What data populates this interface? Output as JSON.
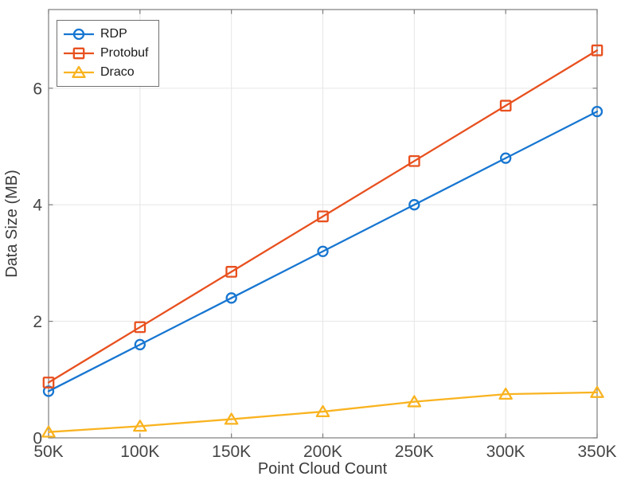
{
  "figure": {
    "background": "#ffffff"
  },
  "chart_data": {
    "type": "line",
    "title": "",
    "xlabel": "Point Cloud Count",
    "ylabel": "Data Size (MB)",
    "x": [
      50,
      100,
      150,
      200,
      250,
      300,
      350
    ],
    "x_tick_labels": [
      "50K",
      "100K",
      "150K",
      "200K",
      "250K",
      "300K",
      "350K"
    ],
    "xlim": [
      50,
      350
    ],
    "y_ticks": [
      0,
      2,
      4,
      6
    ],
    "y_tick_labels": [
      "0",
      "2",
      "4",
      "6"
    ],
    "ylim": [
      0,
      7.35
    ],
    "grid": true,
    "legend_position": "top-left",
    "series": [
      {
        "name": "RDP",
        "color": "#1776d1",
        "marker": "circle",
        "values": [
          0.8,
          1.6,
          2.4,
          3.2,
          4.0,
          4.8,
          5.6
        ]
      },
      {
        "name": "Protobuf",
        "color": "#e8501f",
        "marker": "square",
        "values": [
          0.95,
          1.9,
          2.85,
          3.8,
          4.75,
          5.7,
          6.65
        ]
      },
      {
        "name": "Draco",
        "color": "#f9b320",
        "marker": "triangle",
        "values": [
          0.1,
          0.2,
          0.32,
          0.45,
          0.62,
          0.75,
          0.78
        ]
      }
    ],
    "style": {
      "axis_color": "#7d7d7d",
      "grid_color": "#e6e6e6",
      "tick_label_color": "#454545",
      "axis_label_color": "#3b3b3b",
      "legend_border_color": "#6f6f6f",
      "legend_text_color": "#1a1a1a",
      "plot_background": "#ffffff"
    }
  }
}
